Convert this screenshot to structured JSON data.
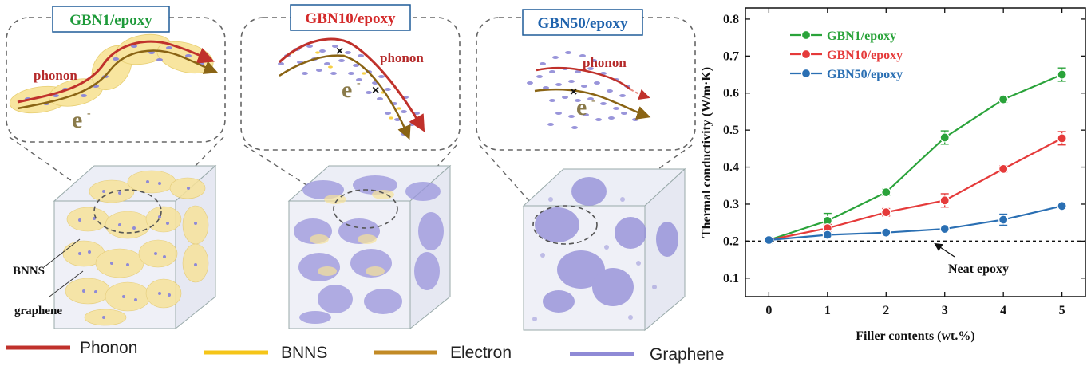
{
  "panels": [
    {
      "title": "GBN1/epoxy",
      "title_color": "#1e9a3a",
      "phonon_label": "phonon",
      "electron_label": "e"
    },
    {
      "title": "GBN10/epoxy",
      "title_color": "#d42a2a",
      "phonon_label": "phonon",
      "electron_label": "e"
    },
    {
      "title": "GBN50/epoxy",
      "title_color": "#1f63ad",
      "phonon_label": "phonon",
      "electron_label": "e"
    }
  ],
  "cube_labels": {
    "bnns": "BNNS",
    "graphene": "graphene"
  },
  "legend": [
    {
      "label": "Phonon",
      "color": "#c0312b"
    },
    {
      "label": "BNNS",
      "color": "#f5c518"
    },
    {
      "label": "Electron",
      "color": "#c28a25"
    },
    {
      "label": "Graphene",
      "color": "#8f8ad6"
    }
  ],
  "chart_data": {
    "type": "line",
    "x": [
      0,
      1,
      2,
      3,
      4,
      5
    ],
    "xlabel": "Filler contents (wt.%)",
    "ylabel": "Thermal conductivity (W/m·K)",
    "xlim": [
      -0.4,
      5.4
    ],
    "ylim": [
      0.05,
      0.83
    ],
    "yticks": [
      0.1,
      0.2,
      0.3,
      0.4,
      0.5,
      0.6,
      0.7,
      0.8
    ],
    "xticks": [
      0,
      1,
      2,
      3,
      4,
      5
    ],
    "series": [
      {
        "name": "GBN1/epoxy",
        "color": "#2aa33a",
        "values": [
          0.203,
          0.255,
          0.332,
          0.48,
          0.583,
          0.65
        ],
        "err": [
          0.008,
          0.02,
          0.008,
          0.018,
          0.008,
          0.018
        ]
      },
      {
        "name": "GBN10/epoxy",
        "color": "#e53a3a",
        "values": [
          0.203,
          0.235,
          0.278,
          0.31,
          0.395,
          0.478
        ],
        "err": [
          0.008,
          0.01,
          0.01,
          0.018,
          0.008,
          0.018
        ]
      },
      {
        "name": "GBN50/epoxy",
        "color": "#2a6fb3",
        "values": [
          0.203,
          0.217,
          0.223,
          0.233,
          0.258,
          0.295
        ],
        "err": [
          0.008,
          0.006,
          0.006,
          0.006,
          0.015,
          0.006
        ]
      }
    ],
    "reference_line": {
      "value": 0.2,
      "label": "Neat epoxy"
    },
    "legend_position": "top-left"
  }
}
